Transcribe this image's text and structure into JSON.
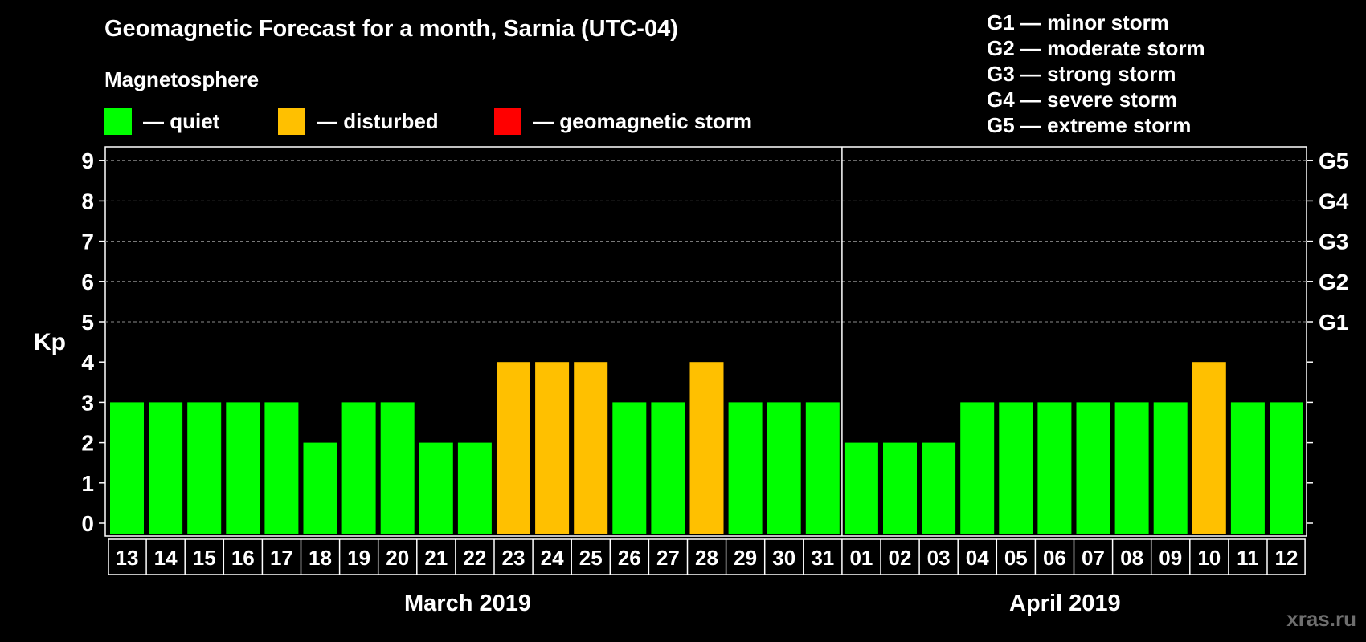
{
  "title": "Geomagnetic Forecast for a month, Sarnia (UTC-04)",
  "legend": {
    "title": "Magnetosphere",
    "items": [
      {
        "label": "— quiet",
        "color": "#00ff00"
      },
      {
        "label": "— disturbed",
        "color": "#ffc000"
      },
      {
        "label": "— geomagnetic storm",
        "color": "#ff0000"
      }
    ]
  },
  "g_scale": [
    "G1 — minor storm",
    "G2 — moderate storm",
    "G3 — strong storm",
    "G4 — severe storm",
    "G5 — extreme storm"
  ],
  "watermark": "xras.ru",
  "chart_data": {
    "type": "bar",
    "title": "Geomagnetic Forecast for a month, Sarnia (UTC-04)",
    "ylabel": "Kp",
    "ylim": [
      0,
      9
    ],
    "yticks": [
      0,
      1,
      2,
      3,
      4,
      5,
      6,
      7,
      8,
      9
    ],
    "right_axis_labels": [
      {
        "kp": 5,
        "label": "G1"
      },
      {
        "kp": 6,
        "label": "G2"
      },
      {
        "kp": 7,
        "label": "G3"
      },
      {
        "kp": 8,
        "label": "G4"
      },
      {
        "kp": 9,
        "label": "G5"
      }
    ],
    "categories": [
      "13",
      "14",
      "15",
      "16",
      "17",
      "18",
      "19",
      "20",
      "21",
      "22",
      "23",
      "24",
      "25",
      "26",
      "27",
      "28",
      "29",
      "30",
      "31",
      "01",
      "02",
      "03",
      "04",
      "05",
      "06",
      "07",
      "08",
      "09",
      "10",
      "11",
      "12"
    ],
    "values": [
      3,
      3,
      3,
      3,
      3,
      2,
      3,
      3,
      2,
      2,
      4,
      4,
      4,
      3,
      3,
      4,
      3,
      3,
      3,
      2,
      2,
      2,
      3,
      3,
      3,
      3,
      3,
      3,
      4,
      3,
      3
    ],
    "months": [
      {
        "label": "March 2019",
        "count": 19
      },
      {
        "label": "April 2019",
        "count": 12
      }
    ],
    "color_rule": {
      "quiet_max": 3,
      "disturbed_max": 4
    }
  }
}
